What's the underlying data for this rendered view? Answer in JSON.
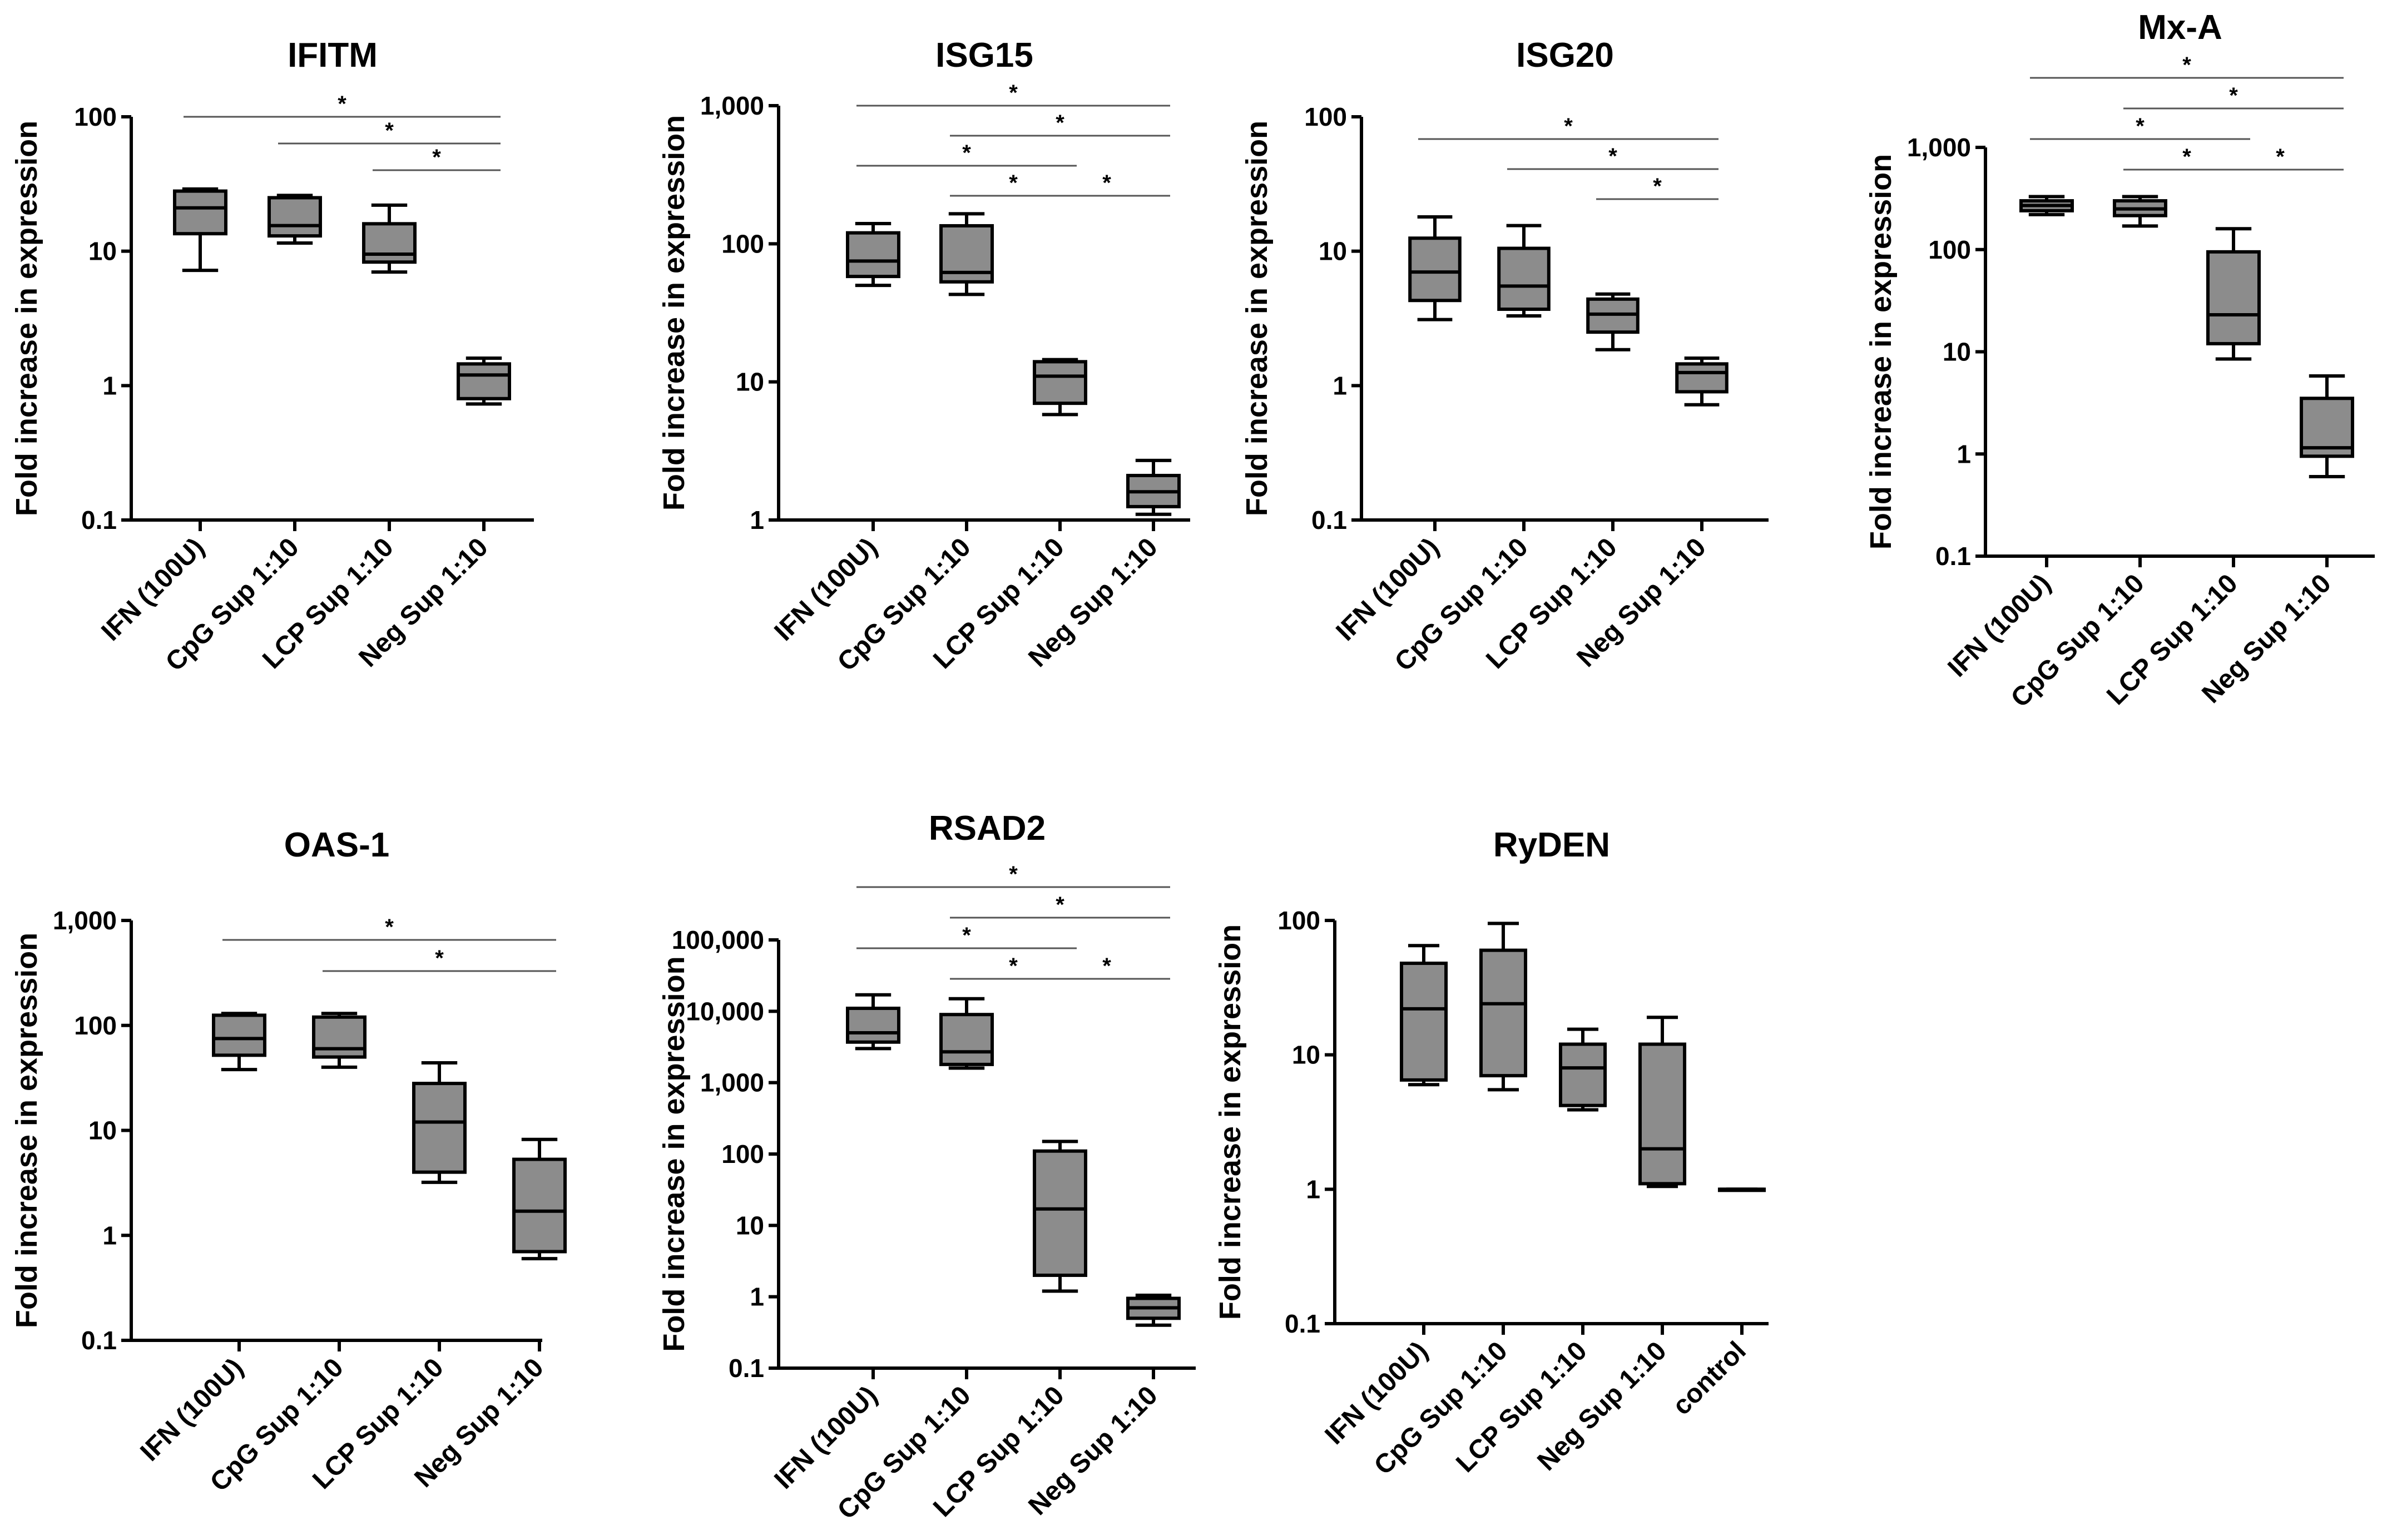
{
  "figure": {
    "description": "Interferon-stimulated gene expression box plots",
    "fill_color": "#8c8c8c",
    "line_color": "#000000"
  },
  "chart_data": [
    {
      "type": "box",
      "title": "IFITM",
      "ylabel": "Fold increase in expression",
      "yscale": "log",
      "ylim": [
        0.1,
        100
      ],
      "ytick_values": [
        0.1,
        1,
        10,
        100
      ],
      "ytick_labels": [
        "0.1",
        "1",
        "10",
        "100"
      ],
      "categories": [
        "IFN (100U)",
        "CpG Sup 1:10",
        "LCP Sup 1:10",
        "Neg Sup 1:10"
      ],
      "boxes": [
        {
          "min": 7.2,
          "q1": 13.5,
          "median": 21,
          "q3": 28,
          "max": 29
        },
        {
          "min": 11.5,
          "q1": 13,
          "median": 15.5,
          "q3": 25,
          "max": 26
        },
        {
          "min": 7.0,
          "q1": 8.3,
          "median": 9.5,
          "q3": 16,
          "max": 22
        },
        {
          "min": 0.73,
          "q1": 0.8,
          "median": 1.2,
          "q3": 1.45,
          "max": 1.6
        }
      ],
      "significance": [
        {
          "from": 0,
          "to": 3,
          "label": "*"
        },
        {
          "from": 1,
          "to": 3,
          "label": "*"
        },
        {
          "from": 2,
          "to": 3,
          "label": "*"
        }
      ]
    },
    {
      "type": "box",
      "title": "ISG15",
      "ylabel": "Fold increase in expression",
      "yscale": "log",
      "ylim": [
        1,
        1000
      ],
      "ytick_values": [
        1,
        10,
        100,
        1000
      ],
      "ytick_labels": [
        "1",
        "10",
        "100",
        "1,000"
      ],
      "categories": [
        "IFN (100U)",
        "CpG Sup 1:10",
        "LCP Sup 1:10",
        "Neg Sup 1:10"
      ],
      "boxes": [
        {
          "min": 50,
          "q1": 58,
          "median": 75,
          "q3": 120,
          "max": 140
        },
        {
          "min": 43,
          "q1": 53,
          "median": 62,
          "q3": 135,
          "max": 165
        },
        {
          "min": 5.8,
          "q1": 7,
          "median": 11,
          "q3": 14,
          "max": 14.5
        },
        {
          "min": 1.1,
          "q1": 1.25,
          "median": 1.6,
          "q3": 2.1,
          "max": 2.7
        }
      ],
      "significance": [
        {
          "from": 0,
          "to": 3,
          "label": "*"
        },
        {
          "from": 1,
          "to": 3,
          "label": "*"
        },
        {
          "from": 0,
          "to": 2,
          "label": "*"
        },
        {
          "from": 2,
          "to": 3,
          "label": "*"
        },
        {
          "from": 1,
          "to": 2,
          "label": "*"
        }
      ]
    },
    {
      "type": "box",
      "title": "ISG20",
      "ylabel": "Fold increase in expression",
      "yscale": "log",
      "ylim": [
        0.1,
        100
      ],
      "ytick_values": [
        0.1,
        1,
        10,
        100
      ],
      "ytick_labels": [
        "0.1",
        "1",
        "10",
        "100"
      ],
      "categories": [
        "IFN (100U)",
        "CpG Sup 1:10",
        "LCP Sup 1:10",
        "Neg Sup 1:10"
      ],
      "boxes": [
        {
          "min": 3.1,
          "q1": 4.3,
          "median": 7,
          "q3": 12.5,
          "max": 18
        },
        {
          "min": 3.3,
          "q1": 3.7,
          "median": 5.5,
          "q3": 10.5,
          "max": 15.5
        },
        {
          "min": 1.85,
          "q1": 2.5,
          "median": 3.4,
          "q3": 4.4,
          "max": 4.8
        },
        {
          "min": 0.72,
          "q1": 0.9,
          "median": 1.25,
          "q3": 1.45,
          "max": 1.6
        }
      ],
      "significance": [
        {
          "from": 0,
          "to": 3,
          "label": "*"
        },
        {
          "from": 1,
          "to": 3,
          "label": "*"
        },
        {
          "from": 2,
          "to": 3,
          "label": "*"
        }
      ]
    },
    {
      "type": "box",
      "title": "Mx-A",
      "ylabel": "Fold increase in expression",
      "yscale": "log",
      "ylim": [
        0.1,
        1000
      ],
      "ytick_values": [
        0.1,
        1,
        10,
        100,
        1000
      ],
      "ytick_labels": [
        "0.1",
        "1",
        "10",
        "100",
        "1,000"
      ],
      "categories": [
        "IFN (100U)",
        "CpG Sup 1:10",
        "LCP Sup 1:10",
        "Neg Sup 1:10"
      ],
      "boxes": [
        {
          "min": 220,
          "q1": 240,
          "median": 270,
          "q3": 300,
          "max": 330
        },
        {
          "min": 170,
          "q1": 215,
          "median": 250,
          "q3": 300,
          "max": 330
        },
        {
          "min": 8.5,
          "q1": 12,
          "median": 23,
          "q3": 95,
          "max": 160
        },
        {
          "min": 0.6,
          "q1": 0.95,
          "median": 1.15,
          "q3": 3.5,
          "max": 5.8
        }
      ],
      "significance": [
        {
          "from": 0,
          "to": 3,
          "label": "*"
        },
        {
          "from": 1,
          "to": 3,
          "label": "*"
        },
        {
          "from": 0,
          "to": 2,
          "label": "*"
        },
        {
          "from": 2,
          "to": 3,
          "label": "*"
        },
        {
          "from": 1,
          "to": 2,
          "label": "*"
        }
      ]
    },
    {
      "type": "box",
      "title": "OAS-1",
      "ylabel": "Fold increase in expression",
      "yscale": "log",
      "ylim": [
        0.1,
        1000
      ],
      "ytick_values": [
        0.1,
        1,
        10,
        100,
        1000
      ],
      "ytick_labels": [
        "0.1",
        "1",
        "10",
        "100",
        "1,000"
      ],
      "categories": [
        "IFN (100U)",
        "CpG Sup 1:10",
        "LCP Sup 1:10",
        "Neg Sup 1:10"
      ],
      "boxes": [
        {
          "min": 38,
          "q1": 52,
          "median": 75,
          "q3": 125,
          "max": 130
        },
        {
          "min": 40,
          "q1": 50,
          "median": 60,
          "q3": 120,
          "max": 130
        },
        {
          "min": 3.2,
          "q1": 4,
          "median": 12,
          "q3": 28,
          "max": 44
        },
        {
          "min": 0.6,
          "q1": 0.7,
          "median": 1.7,
          "q3": 5.3,
          "max": 8.2
        }
      ],
      "significance": [
        {
          "from": 0,
          "to": 3,
          "label": "*"
        },
        {
          "from": 1,
          "to": 3,
          "label": "*"
        }
      ]
    },
    {
      "type": "box",
      "title": "RSAD2",
      "ylabel": "Fold increase in expression",
      "yscale": "log",
      "ylim": [
        0.1,
        100000
      ],
      "ytick_values": [
        0.1,
        1,
        10,
        100,
        1000,
        10000,
        100000
      ],
      "ytick_labels": [
        "0.1",
        "1",
        "10",
        "100",
        "1,000",
        "10,000",
        "100,000"
      ],
      "categories": [
        "IFN (100U)",
        "CpG Sup 1:10",
        "LCP Sup 1:10",
        "Neg Sup 1:10"
      ],
      "boxes": [
        {
          "min": 3000,
          "q1": 3700,
          "median": 5000,
          "q3": 11000,
          "max": 17000
        },
        {
          "min": 1600,
          "q1": 1800,
          "median": 2700,
          "q3": 9000,
          "max": 15000
        },
        {
          "min": 1.2,
          "q1": 2,
          "median": 17,
          "q3": 110,
          "max": 150
        },
        {
          "min": 0.4,
          "q1": 0.5,
          "median": 0.7,
          "q3": 0.95,
          "max": 1.05
        }
      ],
      "significance": [
        {
          "from": 0,
          "to": 3,
          "label": "*"
        },
        {
          "from": 1,
          "to": 3,
          "label": "*"
        },
        {
          "from": 0,
          "to": 2,
          "label": "*"
        },
        {
          "from": 2,
          "to": 3,
          "label": "*"
        },
        {
          "from": 1,
          "to": 2,
          "label": "*"
        }
      ]
    },
    {
      "type": "box",
      "title": "RyDEN",
      "ylabel": "Fold increase in expression",
      "yscale": "log",
      "ylim": [
        0.1,
        100
      ],
      "ytick_values": [
        0.1,
        1,
        10,
        100
      ],
      "ytick_labels": [
        "0.1",
        "1",
        "10",
        "100"
      ],
      "categories": [
        "IFN (100U)",
        "CpG Sup 1:10",
        "LCP Sup 1:10",
        "Neg Sup 1:10",
        "control"
      ],
      "boxes": [
        {
          "min": 6,
          "q1": 6.5,
          "median": 22,
          "q3": 48,
          "max": 65
        },
        {
          "min": 5.5,
          "q1": 7,
          "median": 24,
          "q3": 60,
          "max": 95
        },
        {
          "min": 3.9,
          "q1": 4.2,
          "median": 8,
          "q3": 12,
          "max": 15.5
        },
        {
          "min": 1.05,
          "q1": 1.1,
          "median": 2,
          "q3": 12,
          "max": 19
        },
        {
          "min": 1,
          "q1": 1,
          "median": 1,
          "q3": 1,
          "max": 1
        }
      ],
      "significance": []
    }
  ]
}
